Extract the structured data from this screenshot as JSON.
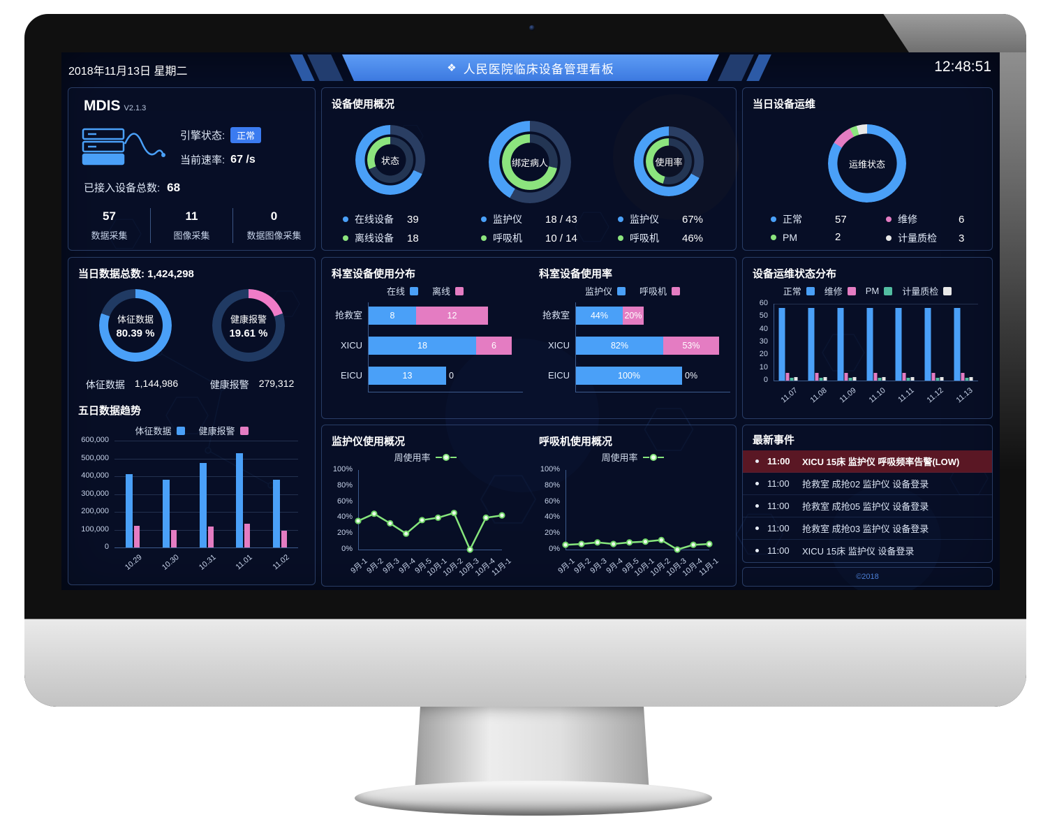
{
  "header": {
    "date": "2018年11月13日 星期二",
    "title": "人民医院临床设备管理看板",
    "title_icon": "❖",
    "time": "12:48:51"
  },
  "colors": {
    "blue": "#4aa0f8",
    "pink": "#e47cc2",
    "green": "#8ce47e",
    "teal": "#52bda1",
    "white": "#e8e8e8",
    "banner_blue": "#4a8cec",
    "alert_row_bg": "#5a1724",
    "badge_blue": "#3b7bf0"
  },
  "mdis": {
    "name": "MDIS",
    "version": "V2.1.3",
    "engine_label": "引擎状态:",
    "engine_status": "正常",
    "rate_label": "当前速率:",
    "rate_value": "67 /s",
    "total_label": "已接入设备总数:",
    "total_value": "68",
    "stats": [
      {
        "value": "57",
        "label": "数据采集"
      },
      {
        "value": "11",
        "label": "图像采集"
      },
      {
        "value": "0",
        "label": "数据图像采集"
      }
    ]
  },
  "device_usage": {
    "title": "设备使用概况",
    "donuts": [
      {
        "center": "状态",
        "outer": {
          "pct": 68.4,
          "color": "#4aa0f8"
        },
        "inner": {
          "pct": 31.6,
          "color": "#8ce47e"
        },
        "legend": [
          {
            "label": "在线设备",
            "value": "39",
            "dot": "#4aa0f8"
          },
          {
            "label": "离线设备",
            "value": "18",
            "dot": "#8ce47e"
          }
        ]
      },
      {
        "center": "绑定病人",
        "outer": {
          "pct": 41.9,
          "color": "#4aa0f8"
        },
        "inner": {
          "pct": 71.4,
          "color": "#8ce47e"
        },
        "legend": [
          {
            "label": "监护仪",
            "value": "18 / 43",
            "dot": "#4aa0f8"
          },
          {
            "label": "呼吸机",
            "value": "10 / 14",
            "dot": "#8ce47e"
          }
        ]
      },
      {
        "center": "使用率",
        "outer": {
          "pct": 67,
          "color": "#4aa0f8"
        },
        "inner": {
          "pct": 46,
          "color": "#8ce47e"
        },
        "legend": [
          {
            "label": "监护仪",
            "value": "67%",
            "dot": "#4aa0f8"
          },
          {
            "label": "呼吸机",
            "value": "46%",
            "dot": "#8ce47e"
          }
        ]
      }
    ]
  },
  "maintenance_today": {
    "title": "当日设备运维",
    "center": "运维状态",
    "segments": [
      {
        "label": "正常",
        "value": 57,
        "color": "#4aa0f8"
      },
      {
        "label": "维修",
        "value": 6,
        "color": "#e47cc2"
      },
      {
        "label": "PM",
        "value": 2,
        "color": "#8ce47e"
      },
      {
        "label": "计量质检",
        "value": 3,
        "color": "#e8e8e8"
      }
    ]
  },
  "data_today": {
    "title": "当日数据总数:",
    "total": "1,424,298",
    "donuts": [
      {
        "label": "体征数据",
        "pct_text": "80.39 %",
        "pct": 80.39,
        "color": "#4aa0f8"
      },
      {
        "label": "健康报警",
        "pct_text": "19.61 %",
        "pct": 19.61,
        "color": "#f07cc8"
      }
    ],
    "stats": [
      {
        "label": "体征数据",
        "value": "1,144,986"
      },
      {
        "label": "健康报警",
        "value": "279,312"
      }
    ],
    "trend_title": "五日数据趋势"
  },
  "chart_data": {
    "five_day_trend": {
      "type": "bar",
      "categories": [
        "10.29",
        "10.30",
        "10.31",
        "11.01",
        "11.02"
      ],
      "series": [
        {
          "name": "体征数据",
          "color": "#4aa0f8",
          "values": [
            410000,
            380000,
            475000,
            530000,
            380000
          ]
        },
        {
          "name": "健康报警",
          "color": "#e47cc2",
          "values": [
            120000,
            100000,
            118000,
            135000,
            93000
          ]
        }
      ],
      "ylim": [
        0,
        600000
      ],
      "yticks": [
        "0",
        "100,000",
        "200,000",
        "300,000",
        "400,000",
        "500,000",
        "600,000"
      ]
    },
    "dept_distribution": {
      "type": "hbar-stacked",
      "title": "科室设备使用分布",
      "categories": [
        "抢救室",
        "XICU",
        "EICU"
      ],
      "series": [
        {
          "name": "在线",
          "color": "#4aa0f8",
          "values": [
            8,
            18,
            13
          ]
        },
        {
          "name": "离线",
          "color": "#e47cc2",
          "values": [
            12,
            6,
            0
          ]
        }
      ],
      "xmax": 24
    },
    "dept_usage_rate": {
      "type": "hbar-stacked",
      "title": "科室设备使用率",
      "categories": [
        "抢救室",
        "XICU",
        "EICU"
      ],
      "series": [
        {
          "name": "监护仪",
          "color": "#4aa0f8",
          "values": [
            44,
            82,
            100
          ]
        },
        {
          "name": "呼吸机",
          "color": "#e47cc2",
          "values": [
            20,
            53,
            0
          ]
        }
      ],
      "unit": "%",
      "xmax": 135
    },
    "maintenance_distribution": {
      "type": "bar",
      "title": "设备运维状态分布",
      "categories": [
        "11.07",
        "11.08",
        "11.09",
        "11.10",
        "11.11",
        "11.12",
        "11.13"
      ],
      "series": [
        {
          "name": "正常",
          "color": "#4aa0f8",
          "values": [
            57,
            57,
            57,
            57,
            57,
            57,
            57
          ]
        },
        {
          "name": "维修",
          "color": "#e47cc2",
          "values": [
            6,
            6,
            6,
            6,
            6,
            6,
            6
          ]
        },
        {
          "name": "PM",
          "color": "#52bda1",
          "values": [
            2,
            2,
            2,
            2,
            2,
            2,
            2
          ]
        },
        {
          "name": "计量质检",
          "color": "#e8e8e8",
          "values": [
            3,
            3,
            3,
            3,
            3,
            3,
            3
          ]
        }
      ],
      "ylim": [
        0,
        60
      ],
      "yticks": [
        "0",
        "10",
        "20",
        "30",
        "40",
        "50",
        "60"
      ]
    },
    "monitor_usage": {
      "type": "line",
      "title": "监护仪使用概况",
      "legend": "周使用率",
      "x": [
        "9月-1",
        "9月-2",
        "9月-3",
        "9月-4",
        "9月-5",
        "10月-1",
        "10月-2",
        "10月-3",
        "10月-4",
        "11月-1"
      ],
      "values": [
        36,
        45,
        33,
        20,
        37,
        40,
        46,
        0,
        40,
        43
      ],
      "ylim": [
        0,
        100
      ],
      "yticks": [
        "0%",
        "20%",
        "40%",
        "60%",
        "80%",
        "100%"
      ]
    },
    "ventilator_usage": {
      "type": "line",
      "title": "呼吸机使用概况",
      "legend": "周使用率",
      "x": [
        "9月-1",
        "9月-2",
        "9月-3",
        "9月-4",
        "9月-5",
        "10月-1",
        "10月-2",
        "10月-3",
        "10月-4",
        "11月-1"
      ],
      "values": [
        6,
        7,
        9,
        7,
        9,
        10,
        12,
        0,
        6,
        7
      ],
      "ylim": [
        0,
        100
      ],
      "yticks": [
        "0%",
        "20%",
        "40%",
        "60%",
        "80%",
        "100%"
      ]
    }
  },
  "events": {
    "title": "最新事件",
    "items": [
      {
        "time": "11:00",
        "text": "XICU 15床 监护仪 呼吸频率告警(LOW)",
        "alert": true
      },
      {
        "time": "11:00",
        "text": "抢救室 成抢02 监护仪 设备登录"
      },
      {
        "time": "11:00",
        "text": "抢救室 成抢05 监护仪 设备登录"
      },
      {
        "time": "11:00",
        "text": "抢救室 成抢03 监护仪 设备登录"
      },
      {
        "time": "11:00",
        "text": "XICU 15床 监护仪 设备登录"
      }
    ],
    "footer": "©2018"
  }
}
